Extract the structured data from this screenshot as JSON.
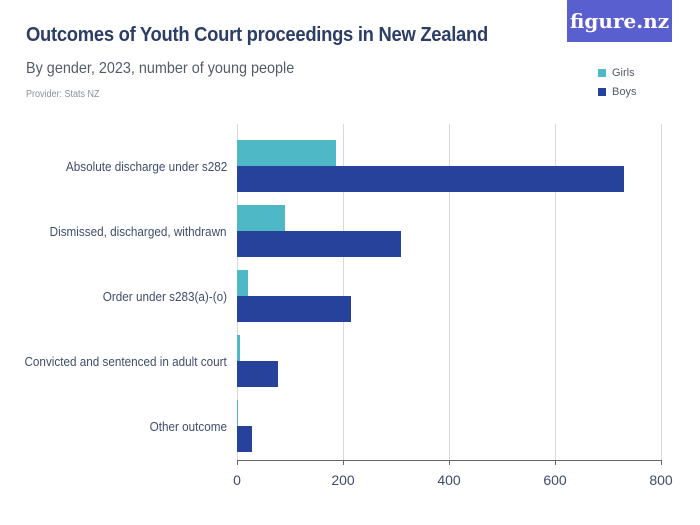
{
  "header": {
    "title": "Outcomes of Youth Court proceedings in New Zealand",
    "subtitle": "By gender, 2023, number of young people",
    "provider": "Provider: Stats NZ",
    "logo": "figure.nz"
  },
  "legend": [
    {
      "label": "Girls",
      "color": "#4fb8c6"
    },
    {
      "label": "Boys",
      "color": "#27429a"
    }
  ],
  "colors": {
    "girls": "#4fb8c6",
    "boys": "#27429a",
    "logo_bg": "#5a5fcf",
    "title": "#2c3e66"
  },
  "chart_data": {
    "type": "bar",
    "orientation": "horizontal",
    "title": "Outcomes of Youth Court proceedings in New Zealand",
    "subtitle": "By gender, 2023, number of young people",
    "xlabel": "",
    "ylabel": "",
    "xlim": [
      0,
      800
    ],
    "x_ticks": [
      "0",
      "200",
      "400",
      "600",
      "800"
    ],
    "grid": true,
    "legend_position": "top-right",
    "categories": [
      "Absolute discharge under s282",
      "Dismissed, discharged, withdrawn",
      "Order under s283(a)-(o)",
      "Convicted and sentenced in adult court",
      "Other outcome"
    ],
    "series": [
      {
        "name": "Girls",
        "values": [
          186,
          90,
          20,
          5,
          2
        ]
      },
      {
        "name": "Boys",
        "values": [
          730,
          309,
          216,
          77,
          29
        ]
      }
    ]
  }
}
